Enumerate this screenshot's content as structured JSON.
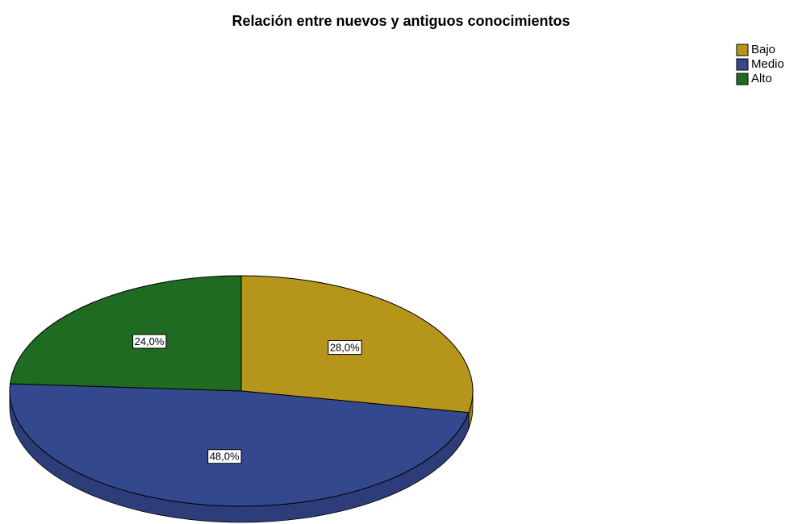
{
  "chart_data": {
    "type": "pie",
    "title": "Relación entre nuevos y antiguos conocimientos",
    "categories": [
      "Bajo",
      "Medio",
      "Alto"
    ],
    "values": [
      28,
      48,
      24
    ],
    "value_labels": [
      "28,0%",
      "48,0%",
      "24,0%"
    ],
    "colors": [
      "#b5951a",
      "#34488e",
      "#1f6b22"
    ],
    "legend": "top-right"
  }
}
